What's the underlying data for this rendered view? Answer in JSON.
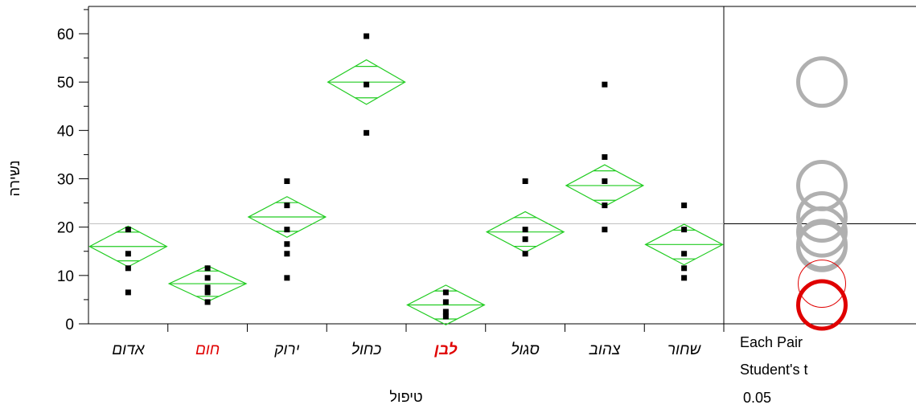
{
  "chart_data": {
    "type": "scatter",
    "xlabel": "טיפול",
    "ylabel": "נשירה",
    "ylim": [
      0,
      65
    ],
    "yticks": [
      0,
      10,
      20,
      30,
      40,
      50,
      60
    ],
    "grand_mean": 20.7,
    "categories": [
      {
        "label": "אדום",
        "color": "#000000",
        "bold": false,
        "mean": 16.0,
        "ci_half": 4.2,
        "points": [
          19.5,
          14.5,
          11.5,
          6.5
        ]
      },
      {
        "label": "חום",
        "color": "#e00000",
        "bold": false,
        "mean": 8.3,
        "ci_half": 3.7,
        "points": [
          11.5,
          9.5,
          7.5,
          6.5,
          4.5
        ]
      },
      {
        "label": "ירוק",
        "color": "#000000",
        "bold": false,
        "mean": 22.1,
        "ci_half": 4.2,
        "points": [
          29.5,
          24.5,
          19.5,
          16.5,
          14.5,
          9.5
        ]
      },
      {
        "label": "כחול",
        "color": "#000000",
        "bold": false,
        "mean": 50.0,
        "ci_half": 4.6,
        "points": [
          59.5,
          49.5,
          39.5
        ]
      },
      {
        "label": "לבן",
        "color": "#e00000",
        "bold": true,
        "mean": 3.9,
        "ci_half": 4.1,
        "points": [
          6.5,
          4.5,
          2.5,
          1.5
        ]
      },
      {
        "label": "סגול",
        "color": "#000000",
        "bold": false,
        "mean": 19.0,
        "ci_half": 4.2,
        "points": [
          29.5,
          19.5,
          17.5,
          14.5
        ]
      },
      {
        "label": "צהוב",
        "color": "#000000",
        "bold": false,
        "mean": 28.6,
        "ci_half": 4.3,
        "points": [
          49.5,
          34.5,
          29.5,
          24.5,
          19.5
        ]
      },
      {
        "label": "שחור",
        "color": "#000000",
        "bold": false,
        "mean": 16.4,
        "ci_half": 4.2,
        "points": [
          24.5,
          19.5,
          14.5,
          11.5,
          9.5
        ]
      }
    ],
    "comparison_circles": [
      {
        "center": 50.0,
        "radius": 4.9,
        "color": "#b0b0b0"
      },
      {
        "center": 28.6,
        "radius": 4.9,
        "color": "#b0b0b0"
      },
      {
        "center": 22.1,
        "radius": 4.9,
        "color": "#b0b0b0"
      },
      {
        "center": 19.0,
        "radius": 4.9,
        "color": "#b0b0b0"
      },
      {
        "center": 16.4,
        "radius": 4.9,
        "color": "#b0b0b0"
      },
      {
        "center": 16.0,
        "radius": 4.9,
        "color": "#b0b0b0"
      },
      {
        "center": 8.3,
        "radius": 4.9,
        "color": "#e00000",
        "thin": true
      },
      {
        "center": 3.9,
        "radius": 4.9,
        "color": "#e00000"
      }
    ]
  },
  "side_panel": {
    "line1": "Each Pair",
    "line2": "Student's t",
    "line3": "0.05"
  },
  "colors": {
    "diamond": "#22cc22",
    "axis": "#000000",
    "mean_line": "#c0c0c0"
  }
}
